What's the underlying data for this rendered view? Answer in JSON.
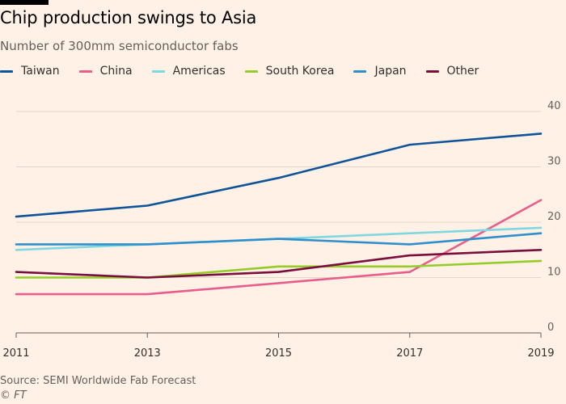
{
  "title": "Chip production swings to Asia",
  "subtitle": "Number of 300mm semiconductor fabs",
  "source": "Source: SEMI Worldwide Fab Forecast",
  "credit": "© FT",
  "chart_data": {
    "type": "line",
    "title": "Chip production swings to Asia",
    "subtitle": "Number of 300mm semiconductor fabs",
    "xlabel": "",
    "ylabel": "",
    "x": [
      2011,
      2013,
      2015,
      2017,
      2019
    ],
    "x_tick_labels": [
      "2011",
      "2013",
      "2015",
      "2017",
      "2019"
    ],
    "ylim": [
      0,
      40
    ],
    "y_ticks": [
      0,
      10,
      20,
      30,
      40
    ],
    "y_tick_labels": [
      "0",
      "10",
      "20",
      "30",
      "40"
    ],
    "grid": "horizontal",
    "legend_position": "top",
    "series": [
      {
        "name": "Taiwan",
        "color": "#0f5499",
        "values": [
          21,
          23,
          28,
          34,
          36
        ]
      },
      {
        "name": "China",
        "color": "#e95d8c",
        "values": [
          7,
          7,
          9,
          11,
          24
        ]
      },
      {
        "name": "Americas",
        "color": "#7fd8e0",
        "values": [
          15,
          16,
          17,
          18,
          19
        ]
      },
      {
        "name": "South Korea",
        "color": "#96cc28",
        "values": [
          10,
          10,
          12,
          12,
          13
        ]
      },
      {
        "name": "Japan",
        "color": "#2e8fcc",
        "values": [
          16,
          16,
          17,
          16,
          18
        ]
      },
      {
        "name": "Other",
        "color": "#7a0e3e",
        "values": [
          11,
          10,
          11,
          14,
          15
        ]
      }
    ]
  }
}
